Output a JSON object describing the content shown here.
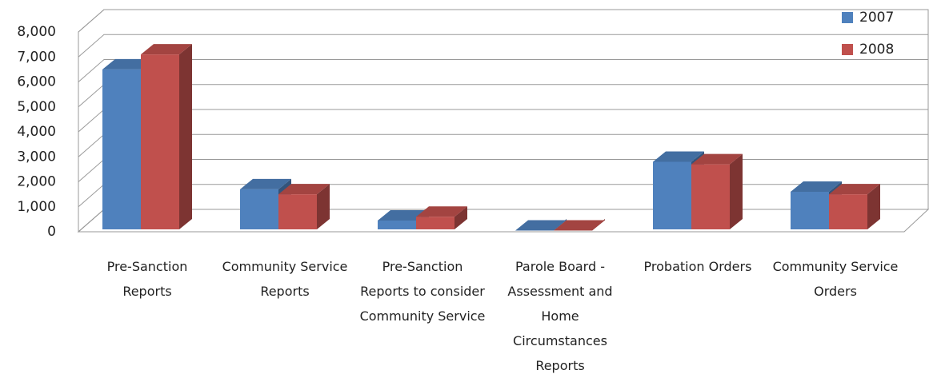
{
  "chart_data": {
    "type": "bar3d",
    "categories": [
      "Pre-Sanction Reports",
      "Community Service Reports",
      "Pre-Sanction Reports to consider Community Service",
      "Parole Board - Assessment and Home Circumstances Reports",
      "Probation Orders",
      "Community Service Orders"
    ],
    "series": [
      {
        "name": "2007",
        "color": "#4f81bd",
        "values": [
          6500,
          1700,
          450,
          50,
          2800,
          1600
        ]
      },
      {
        "name": "2008",
        "color": "#c0504d",
        "values": [
          7100,
          1500,
          600,
          50,
          2700,
          1500
        ]
      }
    ],
    "ylim": [
      0,
      8000
    ],
    "yticks": [
      0,
      {
        "value": 1000,
        "label": "1,000"
      },
      {
        "value": 2000,
        "label": "2,000"
      },
      {
        "value": 3000,
        "label": "3,000"
      },
      {
        "value": 4000,
        "label": "4,000"
      },
      {
        "value": 5000,
        "label": "5,000"
      },
      {
        "value": 6000,
        "label": "6,000"
      },
      {
        "value": 7000,
        "label": "7,000"
      },
      {
        "value": 8000,
        "label": "8,000"
      }
    ],
    "grid": true,
    "legend": "top-right"
  }
}
